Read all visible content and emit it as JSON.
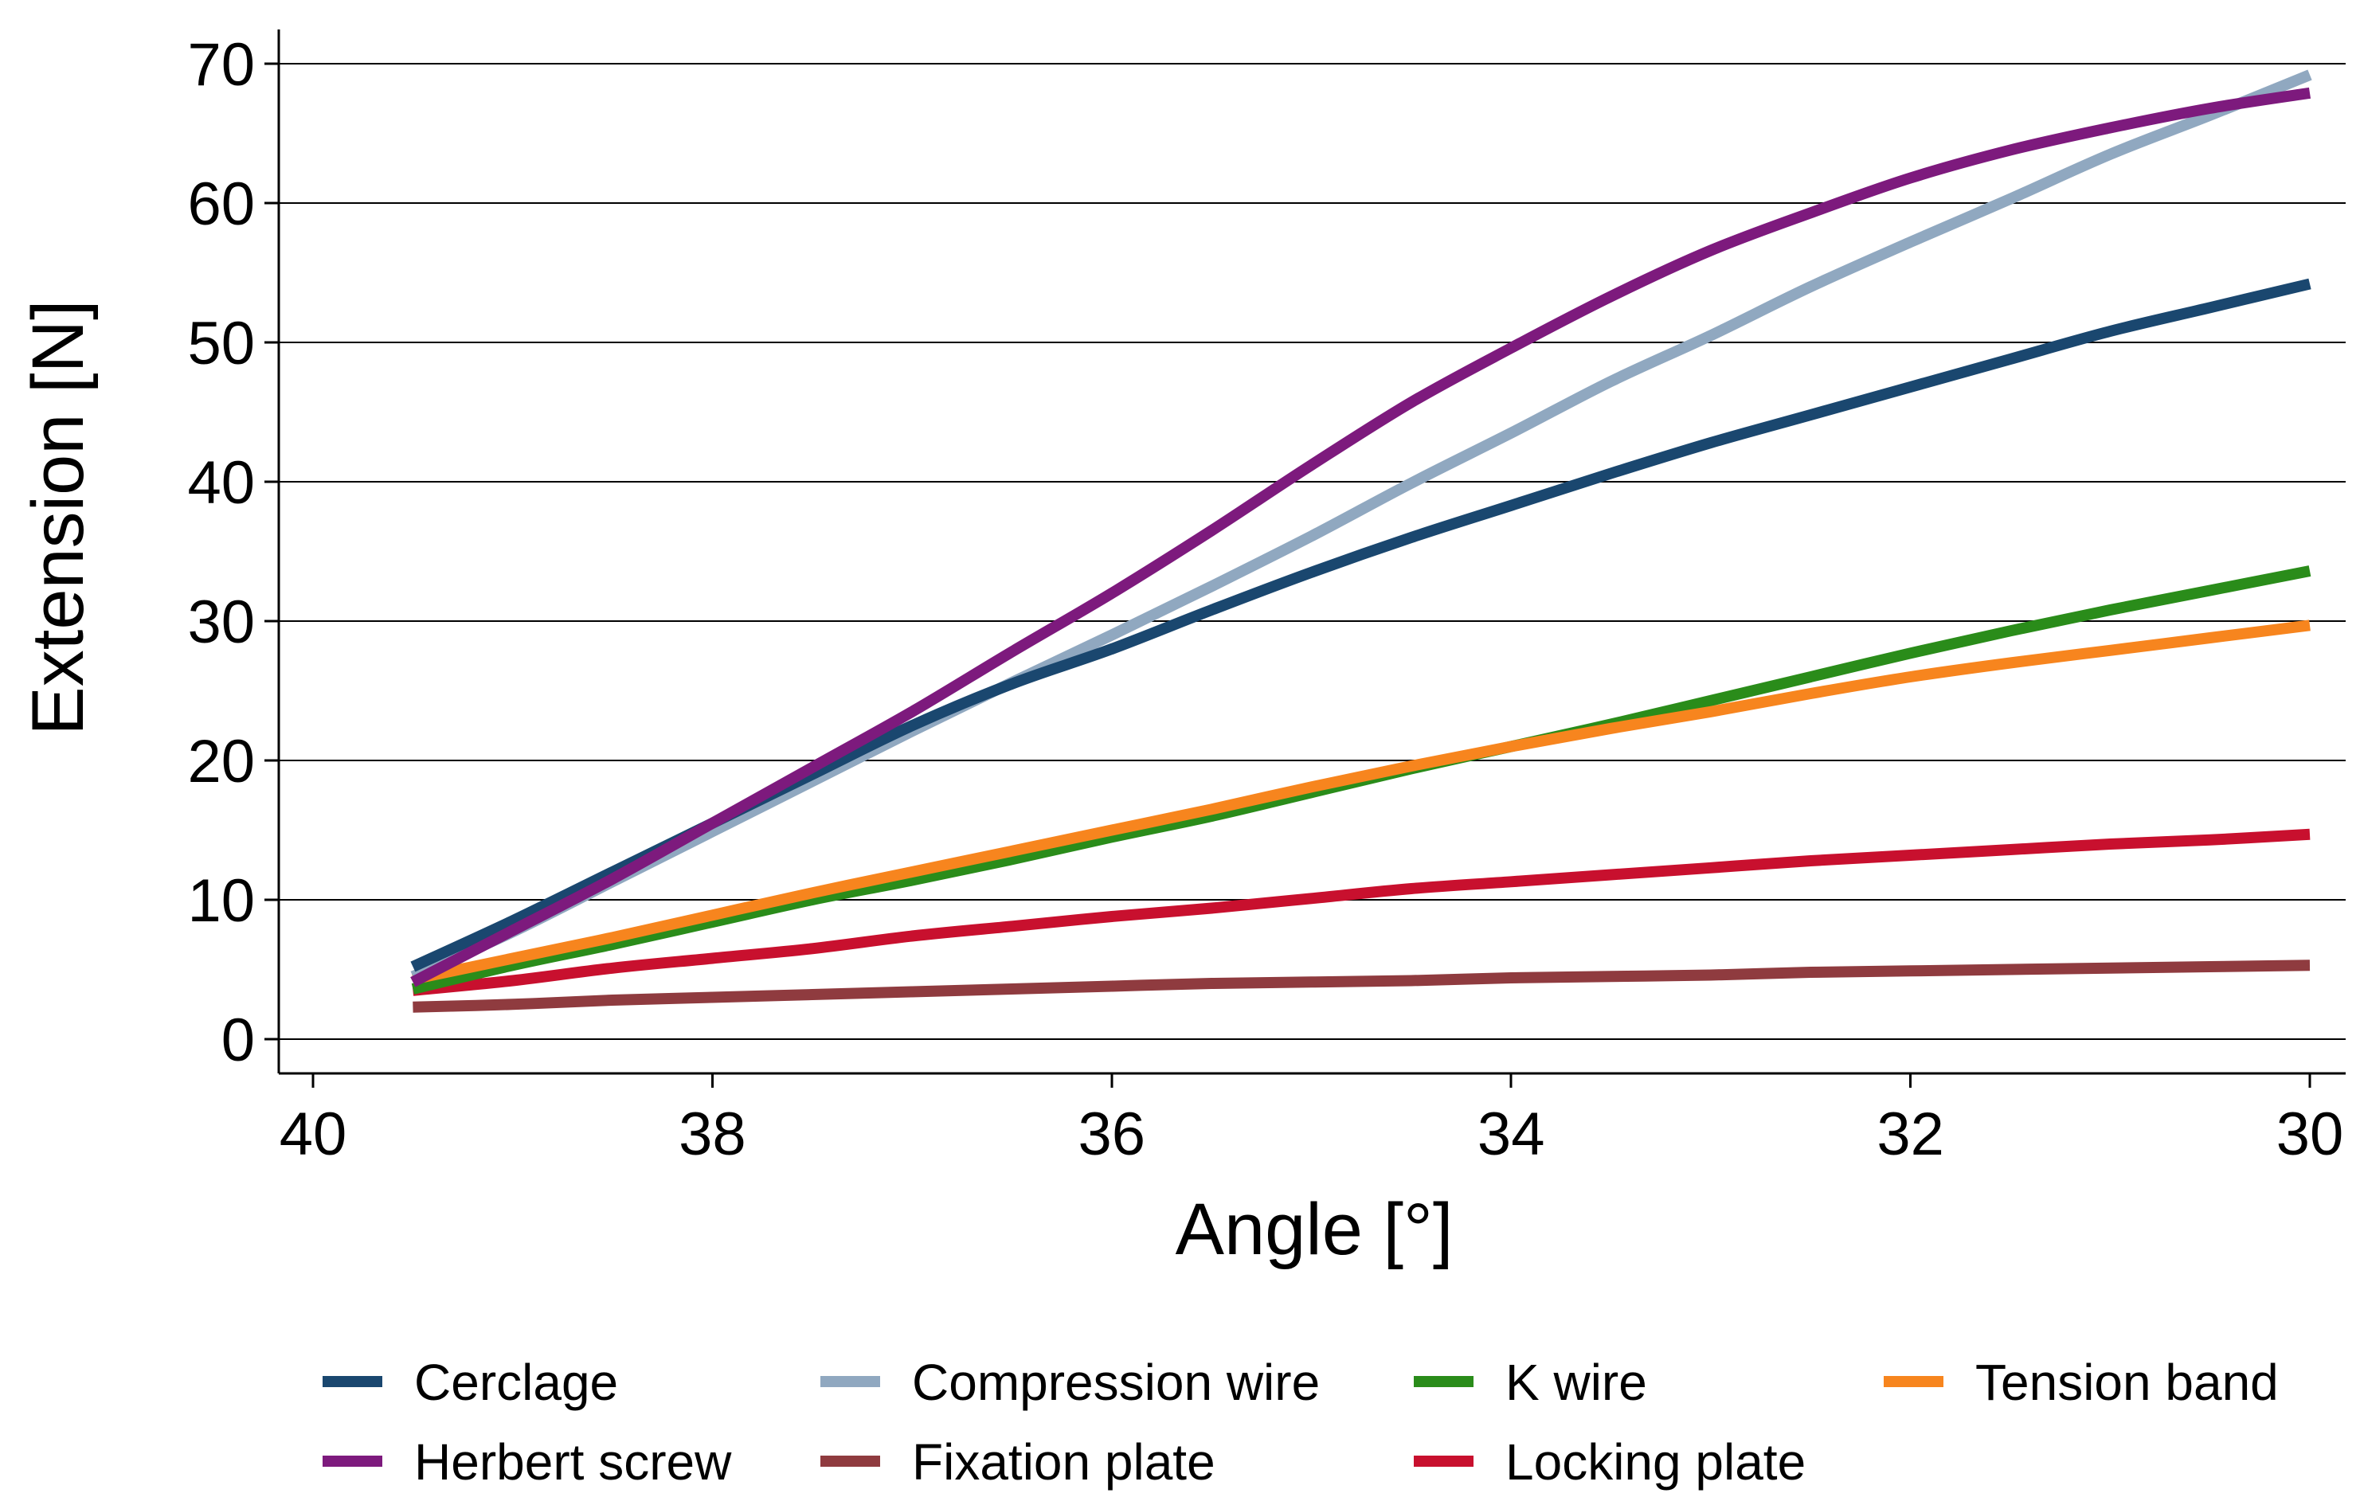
{
  "chart_data": {
    "type": "line",
    "title": "",
    "xlabel": "Angle [°]",
    "ylabel": "Extension [N]",
    "xlim": [
      40,
      30
    ],
    "ylim": [
      -2.5,
      72.5
    ],
    "x_reversed": true,
    "grid": true,
    "legend_position": "bottom",
    "x_ticks": [
      40,
      38,
      36,
      34,
      32,
      30
    ],
    "x_tick_labels": [
      "40",
      "38",
      "36",
      "34",
      "32",
      "30"
    ],
    "y_ticks": [
      0,
      10,
      20,
      30,
      40,
      50,
      60,
      70
    ],
    "y_tick_labels": [
      "0",
      "10",
      "20",
      "30",
      "40",
      "50",
      "60",
      "70"
    ],
    "series": [
      {
        "name": "Cerclage",
        "color": "#1a476f",
        "x": [
          39.5,
          39,
          38.5,
          38,
          37.5,
          37,
          36.5,
          36,
          35.5,
          35,
          34.5,
          34,
          33.5,
          33,
          32.5,
          32,
          31.5,
          31,
          30.5,
          30
        ],
        "y": [
          5.2,
          8.5,
          12,
          15.5,
          19,
          22.5,
          25.5,
          28,
          30.8,
          33.5,
          36,
          38.3,
          40.6,
          42.8,
          44.8,
          46.8,
          48.8,
          50.8,
          52.5,
          54.2
        ]
      },
      {
        "name": "Compression wire",
        "color": "#90a8c0",
        "x": [
          39.5,
          39,
          38.5,
          38,
          37.5,
          37,
          36.5,
          36,
          35.5,
          35,
          34.5,
          34,
          33.5,
          33,
          32.5,
          32,
          31.5,
          31,
          30.5,
          30
        ],
        "y": [
          4.5,
          7.7,
          11.3,
          14.9,
          18.5,
          22.1,
          25.6,
          29,
          32.5,
          36.1,
          39.9,
          43.5,
          47.2,
          50.5,
          54,
          57.2,
          60.3,
          63.5,
          66.3,
          69.2
        ]
      },
      {
        "name": "K wire",
        "color": "#2a8c1a",
        "x": [
          39.5,
          39,
          38.5,
          38,
          37.5,
          37,
          36.5,
          36,
          35.5,
          35,
          34.5,
          34,
          33.5,
          33,
          32.5,
          32,
          31.5,
          31,
          30.5,
          30
        ],
        "y": [
          3.6,
          5.3,
          6.8,
          8.4,
          10,
          11.4,
          12.9,
          14.5,
          16,
          17.7,
          19.4,
          21,
          22.6,
          24.3,
          26,
          27.7,
          29.3,
          30.8,
          32.2,
          33.6
        ]
      },
      {
        "name": "Tension band",
        "color": "#f7851e",
        "x": [
          39.5,
          39,
          38.5,
          38,
          37.5,
          37,
          36.5,
          36,
          35.5,
          35,
          34.5,
          34,
          33.5,
          33,
          32.5,
          32,
          31.5,
          31,
          30.5,
          30
        ],
        "y": [
          4.3,
          5.8,
          7.3,
          8.9,
          10.5,
          12,
          13.5,
          15,
          16.5,
          18.1,
          19.6,
          21,
          22.3,
          23.5,
          24.8,
          26,
          27,
          27.9,
          28.8,
          29.7
        ]
      },
      {
        "name": "Herbert screw",
        "color": "#7d1a7d",
        "x": [
          39.5,
          39,
          38.5,
          38,
          37.5,
          37,
          36.5,
          36,
          35.5,
          35,
          34.5,
          34,
          33.5,
          33,
          32.5,
          32,
          31.5,
          31,
          30.5,
          30
        ],
        "y": [
          4.1,
          7.8,
          11.5,
          15.5,
          19.5,
          23.5,
          27.8,
          32,
          36.5,
          41.2,
          45.7,
          49.6,
          53.3,
          56.6,
          59.3,
          61.8,
          63.8,
          65.4,
          66.8,
          67.9
        ]
      },
      {
        "name": "Fixation plate",
        "color": "#8f3b3f",
        "x": [
          39.5,
          39,
          38.5,
          38,
          37.5,
          37,
          36.5,
          36,
          35.5,
          35,
          34.5,
          34,
          33.5,
          33,
          32.5,
          32,
          31.5,
          31,
          30.5,
          30
        ],
        "y": [
          2.3,
          2.5,
          2.8,
          3,
          3.2,
          3.4,
          3.6,
          3.8,
          4,
          4.1,
          4.2,
          4.4,
          4.5,
          4.6,
          4.8,
          4.9,
          5,
          5.1,
          5.2,
          5.3
        ]
      },
      {
        "name": "Locking plate",
        "color": "#c8102e",
        "x": [
          39.5,
          39,
          38.5,
          38,
          37.5,
          37,
          36.5,
          36,
          35.5,
          35,
          34.5,
          34,
          33.5,
          33,
          32.5,
          32,
          31.5,
          31,
          30.5,
          30
        ],
        "y": [
          3.5,
          4.2,
          5.1,
          5.8,
          6.5,
          7.4,
          8.1,
          8.8,
          9.4,
          10.1,
          10.8,
          11.3,
          11.8,
          12.3,
          12.8,
          13.2,
          13.6,
          14,
          14.3,
          14.7
        ]
      }
    ]
  }
}
